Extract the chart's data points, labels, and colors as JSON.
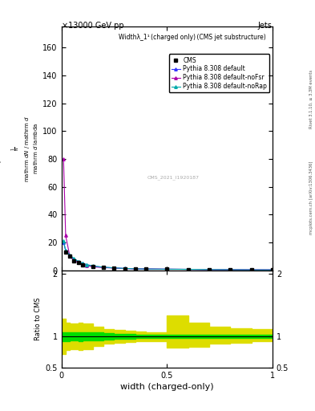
{
  "title_top": "×13000 GeV pp",
  "title_right": "Jets",
  "plot_title": "Widthλ_1¹ (charged only) (CMS jet substructure)",
  "cms_label": "CMS",
  "watermark": "CMS_2021_I1920187",
  "right_label_top": "Rivet 3.1.10, ≥ 3.3M events",
  "right_label_bottom": "mcplots.cern.ch [arXiv:1306.3436]",
  "xlabel": "width (charged-only)",
  "ylabel_ratio": "Ratio to CMS",
  "xlim": [
    0,
    1
  ],
  "ylim_main": [
    0,
    175
  ],
  "ylim_ratio": [
    0.5,
    2.05
  ],
  "yticks_main": [
    0,
    20,
    40,
    60,
    80,
    100,
    120,
    140,
    160
  ],
  "yticks_ratio": [
    0.5,
    1.0,
    2.0
  ],
  "colors": {
    "cms_data": "#000000",
    "pythia_default": "#3333ff",
    "pythia_noFsr": "#aa00aa",
    "pythia_noRap": "#00aaaa",
    "green_band": "#00dd00",
    "yellow_band": "#dddd00"
  },
  "cms_x": [
    0.02,
    0.04,
    0.06,
    0.08,
    0.1,
    0.15,
    0.2,
    0.25,
    0.3,
    0.35,
    0.4,
    0.5,
    0.6,
    0.7,
    0.8,
    0.9,
    1.0
  ],
  "cms_y": [
    13.0,
    10.0,
    7.0,
    5.5,
    4.0,
    2.8,
    2.0,
    1.5,
    1.2,
    1.0,
    0.9,
    0.8,
    0.7,
    0.5,
    0.4,
    0.3,
    0.25
  ],
  "pythia_default_x": [
    0.01,
    0.02,
    0.04,
    0.06,
    0.08,
    0.1,
    0.12,
    0.15,
    0.2,
    0.25,
    0.3,
    0.35,
    0.4,
    0.5,
    0.6,
    0.7,
    0.8,
    0.9,
    1.0
  ],
  "pythia_default_y": [
    20.0,
    14.0,
    10.5,
    8.0,
    6.0,
    5.0,
    4.0,
    3.0,
    2.2,
    1.8,
    1.4,
    1.1,
    1.0,
    0.85,
    0.75,
    0.6,
    0.5,
    0.4,
    0.35
  ],
  "pythia_noFsr_x": [
    0.01,
    0.02,
    0.04,
    0.06,
    0.08,
    0.1,
    0.12,
    0.15,
    0.2,
    0.25,
    0.3,
    0.35,
    0.4,
    0.5,
    0.6,
    0.7,
    0.8,
    0.9,
    1.0
  ],
  "pythia_noFsr_y": [
    80.0,
    25.0,
    10.0,
    7.0,
    5.5,
    4.5,
    3.5,
    2.5,
    2.0,
    1.6,
    1.3,
    1.1,
    1.0,
    0.85,
    0.75,
    0.6,
    0.5,
    0.4,
    0.35
  ],
  "pythia_noRap_x": [
    0.01,
    0.02,
    0.04,
    0.06,
    0.08,
    0.1,
    0.12,
    0.15,
    0.2,
    0.25,
    0.3,
    0.35,
    0.4,
    0.5,
    0.6,
    0.7,
    0.8,
    0.9,
    1.0
  ],
  "pythia_noRap_y": [
    21.0,
    14.5,
    11.0,
    8.5,
    6.5,
    5.2,
    4.2,
    3.2,
    2.3,
    1.8,
    1.4,
    1.1,
    1.0,
    0.85,
    0.75,
    0.6,
    0.5,
    0.4,
    0.35
  ],
  "ratio_x": [
    0.0,
    0.02,
    0.04,
    0.06,
    0.08,
    0.1,
    0.15,
    0.2,
    0.25,
    0.3,
    0.35,
    0.4,
    0.5,
    0.6,
    0.7,
    0.8,
    0.9,
    1.0
  ],
  "green_lo": [
    0.93,
    0.93,
    0.94,
    0.94,
    0.93,
    0.94,
    0.94,
    0.95,
    0.96,
    0.96,
    0.97,
    0.97,
    0.97,
    0.97,
    0.97,
    0.97,
    0.97,
    0.97
  ],
  "green_hi": [
    1.07,
    1.07,
    1.06,
    1.06,
    1.07,
    1.06,
    1.06,
    1.05,
    1.04,
    1.04,
    1.03,
    1.03,
    1.03,
    1.03,
    1.03,
    1.03,
    1.03,
    1.03
  ],
  "yellow_lo": [
    0.72,
    0.78,
    0.8,
    0.8,
    0.78,
    0.8,
    0.85,
    0.88,
    0.9,
    0.91,
    0.92,
    0.93,
    0.82,
    0.83,
    0.88,
    0.9,
    0.92,
    0.93
  ],
  "yellow_hi": [
    1.28,
    1.22,
    1.2,
    1.2,
    1.22,
    1.2,
    1.15,
    1.12,
    1.1,
    1.09,
    1.08,
    1.07,
    1.33,
    1.22,
    1.16,
    1.13,
    1.11,
    1.09
  ]
}
